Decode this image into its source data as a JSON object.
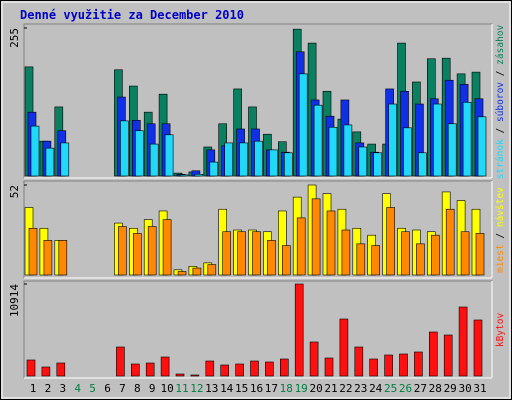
{
  "chart_data": [
    {
      "type": "bar",
      "title": "Denné využitie za December 2010",
      "ylim": [
        0,
        255
      ],
      "yticks": [
        255
      ],
      "legend_separator": " / ",
      "series": [
        {
          "name": "zásahov",
          "color": "#0a8060",
          "values": [
            188,
            60,
            119,
            0,
            0,
            0,
            183,
            155,
            110,
            141,
            5,
            7,
            50,
            90,
            150,
            119,
            72,
            59,
            253,
            229,
            146,
            98,
            76,
            55,
            55,
            229,
            162,
            202,
            203,
            176,
            179
          ]
        },
        {
          "name": "súborov",
          "color": "#1030e8",
          "values": [
            110,
            60,
            78,
            0,
            0,
            0,
            136,
            96,
            90,
            90,
            3,
            9,
            45,
            52,
            81,
            81,
            45,
            41,
            214,
            131,
            103,
            131,
            57,
            41,
            150,
            146,
            124,
            133,
            165,
            158,
            133
          ]
        },
        {
          "name": "stránok",
          "color": "#20d8f8",
          "values": [
            86,
            48,
            57,
            0,
            0,
            0,
            95,
            78,
            55,
            71,
            2,
            3,
            24,
            57,
            57,
            60,
            45,
            40,
            176,
            122,
            84,
            88,
            50,
            40,
            124,
            83,
            40,
            124,
            90,
            127,
            102
          ]
        }
      ]
    },
    {
      "type": "bar",
      "ylim": [
        0,
        52
      ],
      "yticks": [
        52
      ],
      "legend_separator": " / ",
      "series": [
        {
          "name": "návštev",
          "color": "#ffff00",
          "values": [
            39,
            27,
            20,
            0,
            0,
            0,
            30,
            27,
            32,
            37,
            3,
            5,
            7,
            38,
            26,
            26,
            25,
            37,
            45,
            52,
            47,
            38,
            27,
            23,
            47,
            27,
            26,
            25,
            48,
            43,
            38
          ]
        },
        {
          "name": "miest",
          "color": "#ff8800",
          "values": [
            27,
            20,
            20,
            0,
            0,
            0,
            28,
            24,
            28,
            32,
            2,
            4,
            6,
            25,
            25,
            25,
            20,
            17,
            33,
            44,
            37,
            26,
            18,
            17,
            39,
            25,
            18,
            23,
            38,
            25,
            24
          ]
        }
      ]
    },
    {
      "type": "bar",
      "ylim": [
        0,
        10914
      ],
      "yticks": [
        10914
      ],
      "categories": [
        "1",
        "2",
        "3",
        "4",
        "5",
        "6",
        "7",
        "8",
        "9",
        "10",
        "11",
        "12",
        "13",
        "14",
        "15",
        "16",
        "17",
        "18",
        "19",
        "20",
        "21",
        "22",
        "23",
        "24",
        "25",
        "26",
        "27",
        "28",
        "29",
        "30",
        "31"
      ],
      "category_colors": [
        "#000",
        "#000",
        "#000",
        "#008040",
        "#008040",
        "#000",
        "#000",
        "#000",
        "#000",
        "#000",
        "#008040",
        "#008040",
        "#000",
        "#000",
        "#000",
        "#000",
        "#000",
        "#008040",
        "#008040",
        "#000",
        "#000",
        "#000",
        "#000",
        "#000",
        "#008040",
        "#008040",
        "#000",
        "#000",
        "#000",
        "#000",
        "#000"
      ],
      "series": [
        {
          "name": "kBytov",
          "color": "#ff1010",
          "values": [
            1898,
            1068,
            1542,
            0,
            0,
            0,
            3440,
            1424,
            1542,
            2254,
            237,
            119,
            1779,
            1305,
            1424,
            1779,
            1661,
            2017,
            10914,
            4034,
            2135,
            6762,
            3440,
            2017,
            2491,
            2610,
            2847,
            5220,
            4864,
            8185,
            6643
          ]
        }
      ]
    }
  ]
}
